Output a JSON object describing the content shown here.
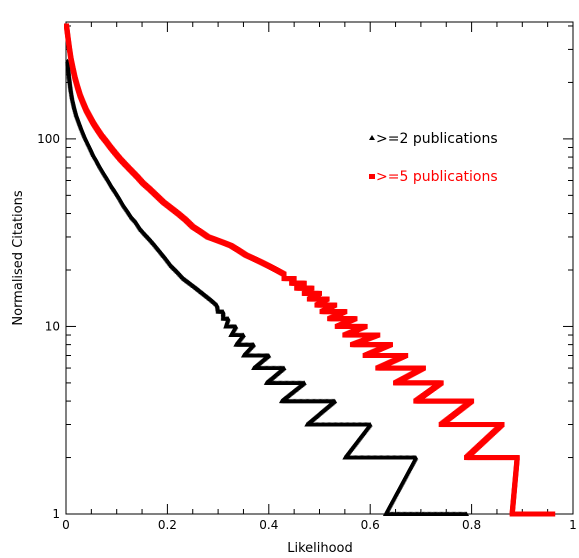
{
  "chart_data": {
    "type": "scatter",
    "title": "",
    "xlabel": "Likelihood",
    "ylabel": "Normalised Citations",
    "xlim": [
      0,
      1
    ],
    "ylim": [
      1,
      420
    ],
    "yscale": "log",
    "grid": false,
    "legend_placement": "right-upper",
    "x_ticks": [
      {
        "value": 0,
        "label": "0"
      },
      {
        "value": 0.2,
        "label": "0.2"
      },
      {
        "value": 0.4,
        "label": "0.4"
      },
      {
        "value": 0.6,
        "label": "0.6"
      },
      {
        "value": 0.8,
        "label": "0.8"
      },
      {
        "value": 1,
        "label": "1"
      }
    ],
    "y_ticks": [
      {
        "value": 1,
        "label": "1"
      },
      {
        "value": 10,
        "label": "10"
      },
      {
        "value": 100,
        "label": "100"
      }
    ],
    "series": [
      {
        "name": ">=2 publications",
        "color": "#000000",
        "marker": "triangle",
        "points": [
          [
            0.003,
            260
          ],
          [
            0.006,
            215
          ],
          [
            0.009,
            185
          ],
          [
            0.012,
            165
          ],
          [
            0.016,
            148
          ],
          [
            0.02,
            135
          ],
          [
            0.025,
            124
          ],
          [
            0.03,
            114
          ],
          [
            0.036,
            104
          ],
          [
            0.042,
            96
          ],
          [
            0.048,
            89
          ],
          [
            0.054,
            82
          ],
          [
            0.06,
            77
          ],
          [
            0.067,
            71
          ],
          [
            0.074,
            66
          ],
          [
            0.082,
            61
          ],
          [
            0.09,
            56
          ],
          [
            0.098,
            52
          ],
          [
            0.106,
            48
          ],
          [
            0.114,
            44
          ],
          [
            0.122,
            41
          ],
          [
            0.13,
            38
          ],
          [
            0.138,
            36
          ],
          [
            0.147,
            33
          ],
          [
            0.156,
            31
          ],
          [
            0.166,
            29
          ],
          [
            0.176,
            27
          ],
          [
            0.186,
            25
          ],
          [
            0.197,
            23
          ],
          [
            0.208,
            21
          ],
          [
            0.22,
            19.5
          ],
          [
            0.232,
            18
          ],
          [
            0.244,
            17
          ],
          [
            0.257,
            16
          ],
          [
            0.27,
            15
          ],
          [
            0.284,
            14
          ],
          [
            0.298,
            13
          ],
          [
            0.3,
            12
          ],
          [
            0.31,
            12
          ],
          [
            0.31,
            11
          ],
          [
            0.32,
            11
          ],
          [
            0.315,
            10
          ],
          [
            0.335,
            10
          ],
          [
            0.325,
            9
          ],
          [
            0.35,
            9
          ],
          [
            0.335,
            8
          ],
          [
            0.37,
            8
          ],
          [
            0.35,
            7
          ],
          [
            0.4,
            7
          ],
          [
            0.37,
            6
          ],
          [
            0.43,
            6
          ],
          [
            0.395,
            5
          ],
          [
            0.47,
            5
          ],
          [
            0.425,
            4
          ],
          [
            0.53,
            4
          ],
          [
            0.475,
            3
          ],
          [
            0.6,
            3
          ],
          [
            0.55,
            2
          ],
          [
            0.69,
            2
          ],
          [
            0.63,
            1
          ],
          [
            0.79,
            1
          ]
        ]
      },
      {
        "name": ">=5 publications",
        "color": "#ff0000",
        "marker": "square",
        "points": [
          [
            0.001,
            400
          ],
          [
            0.004,
            345
          ],
          [
            0.007,
            300
          ],
          [
            0.01,
            265
          ],
          [
            0.014,
            235
          ],
          [
            0.018,
            210
          ],
          [
            0.023,
            188
          ],
          [
            0.028,
            170
          ],
          [
            0.034,
            155
          ],
          [
            0.04,
            142
          ],
          [
            0.047,
            131
          ],
          [
            0.054,
            121
          ],
          [
            0.062,
            112
          ],
          [
            0.07,
            104
          ],
          [
            0.079,
            97
          ],
          [
            0.088,
            90
          ],
          [
            0.097,
            84
          ],
          [
            0.107,
            78
          ],
          [
            0.117,
            73
          ],
          [
            0.128,
            68
          ],
          [
            0.14,
            63
          ],
          [
            0.152,
            58
          ],
          [
            0.165,
            54
          ],
          [
            0.178,
            50
          ],
          [
            0.192,
            46
          ],
          [
            0.206,
            43
          ],
          [
            0.221,
            40
          ],
          [
            0.236,
            37
          ],
          [
            0.25,
            34
          ],
          [
            0.265,
            32
          ],
          [
            0.28,
            30
          ],
          [
            0.295,
            29
          ],
          [
            0.31,
            28
          ],
          [
            0.325,
            27
          ],
          [
            0.34,
            25.5
          ],
          [
            0.355,
            24
          ],
          [
            0.37,
            23
          ],
          [
            0.385,
            22
          ],
          [
            0.4,
            21
          ],
          [
            0.415,
            20
          ],
          [
            0.43,
            19
          ],
          [
            0.43,
            18
          ],
          [
            0.45,
            18
          ],
          [
            0.445,
            17
          ],
          [
            0.47,
            17
          ],
          [
            0.455,
            16
          ],
          [
            0.485,
            16
          ],
          [
            0.47,
            15
          ],
          [
            0.5,
            15
          ],
          [
            0.48,
            14
          ],
          [
            0.515,
            14
          ],
          [
            0.495,
            13
          ],
          [
            0.53,
            13
          ],
          [
            0.505,
            12
          ],
          [
            0.55,
            12
          ],
          [
            0.52,
            11
          ],
          [
            0.57,
            11
          ],
          [
            0.535,
            10
          ],
          [
            0.59,
            10
          ],
          [
            0.55,
            9
          ],
          [
            0.615,
            9
          ],
          [
            0.565,
            8
          ],
          [
            0.64,
            8
          ],
          [
            0.59,
            7
          ],
          [
            0.67,
            7
          ],
          [
            0.615,
            6
          ],
          [
            0.705,
            6
          ],
          [
            0.65,
            5
          ],
          [
            0.74,
            5
          ],
          [
            0.69,
            4
          ],
          [
            0.8,
            4
          ],
          [
            0.74,
            3
          ],
          [
            0.86,
            3
          ],
          [
            0.79,
            2
          ],
          [
            0.89,
            2
          ],
          [
            0.88,
            1
          ],
          [
            0.96,
            1
          ]
        ]
      }
    ]
  }
}
